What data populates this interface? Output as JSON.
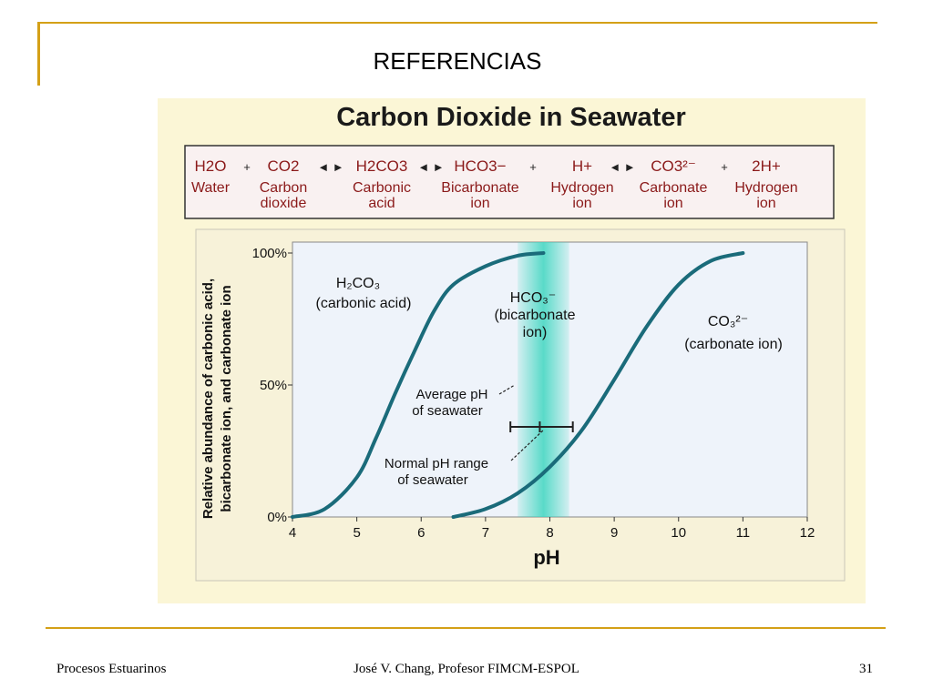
{
  "slide": {
    "title": "REFERENCIAS",
    "footer_left": "Procesos Estuarinos",
    "footer_center": "José V. Chang, Profesor FIMCM-ESPOL",
    "page_number": "31"
  },
  "colors": {
    "accent_rule": "#d4a017",
    "figure_bg": "#fbf6d6",
    "plot_bg": "#eef3fa",
    "curve": "#1a6b7a",
    "equation_text": "#8b1a1a",
    "band": "#3fd6c0"
  },
  "figure": {
    "title": "Carbon Dioxide in Seawater",
    "equation": [
      {
        "formula": "H2O",
        "name_line1": "Water",
        "name_line2": ""
      },
      {
        "formula": "CO2",
        "name_line1": "Carbon",
        "name_line2": "dioxide"
      },
      {
        "formula": "H2CO3",
        "name_line1": "Carbonic",
        "name_line2": "acid"
      },
      {
        "formula": "HCO3−",
        "name_line1": "Bicarbonate",
        "name_line2": "ion"
      },
      {
        "formula": "H+",
        "name_line1": "Hydrogen",
        "name_line2": "ion"
      },
      {
        "formula": "CO3²⁻",
        "name_line1": "Carbonate",
        "name_line2": "ion"
      },
      {
        "formula": "2H+",
        "name_line1": "Hydrogen",
        "name_line2": "ion"
      }
    ],
    "operators": [
      "+",
      "◄ ►",
      "◄ ►",
      "+",
      "◄ ►",
      "+"
    ]
  },
  "chart_data": {
    "type": "line",
    "title": "Carbon Dioxide in Seawater",
    "xlabel": "pH",
    "ylabel_line1": "Relative abundance of carbonic acid,",
    "ylabel_line2": "bicarbonate ion, and carbonate ion",
    "xlim": [
      4,
      12
    ],
    "ylim": [
      0,
      100
    ],
    "x_ticks": [
      "4",
      "5",
      "6",
      "7",
      "8",
      "9",
      "10",
      "11",
      "12"
    ],
    "y_ticks": [
      {
        "value": 0,
        "label": "0%"
      },
      {
        "value": 50,
        "label": "50%"
      },
      {
        "value": 100,
        "label": "100%"
      }
    ],
    "grid": false,
    "series": [
      {
        "name": "H2CO3 (carbonic acid)",
        "x": [
          4.0,
          4.5,
          5.0,
          5.3,
          5.6,
          5.9,
          6.2,
          6.5,
          7.0,
          7.5,
          7.9
        ],
        "y": [
          0,
          3,
          15,
          30,
          47,
          63,
          78,
          88,
          95,
          99,
          100
        ]
      },
      {
        "name": "CO3²⁻ (carbonate ion)",
        "x": [
          6.5,
          7.0,
          7.5,
          8.0,
          8.5,
          9.0,
          9.5,
          10.0,
          10.5,
          11.0
        ],
        "y": [
          0,
          3,
          9,
          19,
          33,
          52,
          72,
          88,
          97,
          100
        ]
      }
    ],
    "annotations": {
      "h2co3_line1": "H₂CO₃",
      "h2co3_line2": "(carbonic acid)",
      "hco3_line1": "HCO₃⁻",
      "hco3_line2": "(bicarbonate",
      "hco3_line3": "ion)",
      "co3_line1": "CO₃²⁻",
      "co3_line2": "(carbonate ion)",
      "avg_ph_line1": "Average pH",
      "avg_ph_line2": "of seawater",
      "normal_range_line1": "Normal pH range",
      "normal_range_line2": "of seawater"
    },
    "average_ph": 8.0,
    "normal_ph_range": [
      7.5,
      8.3
    ]
  }
}
